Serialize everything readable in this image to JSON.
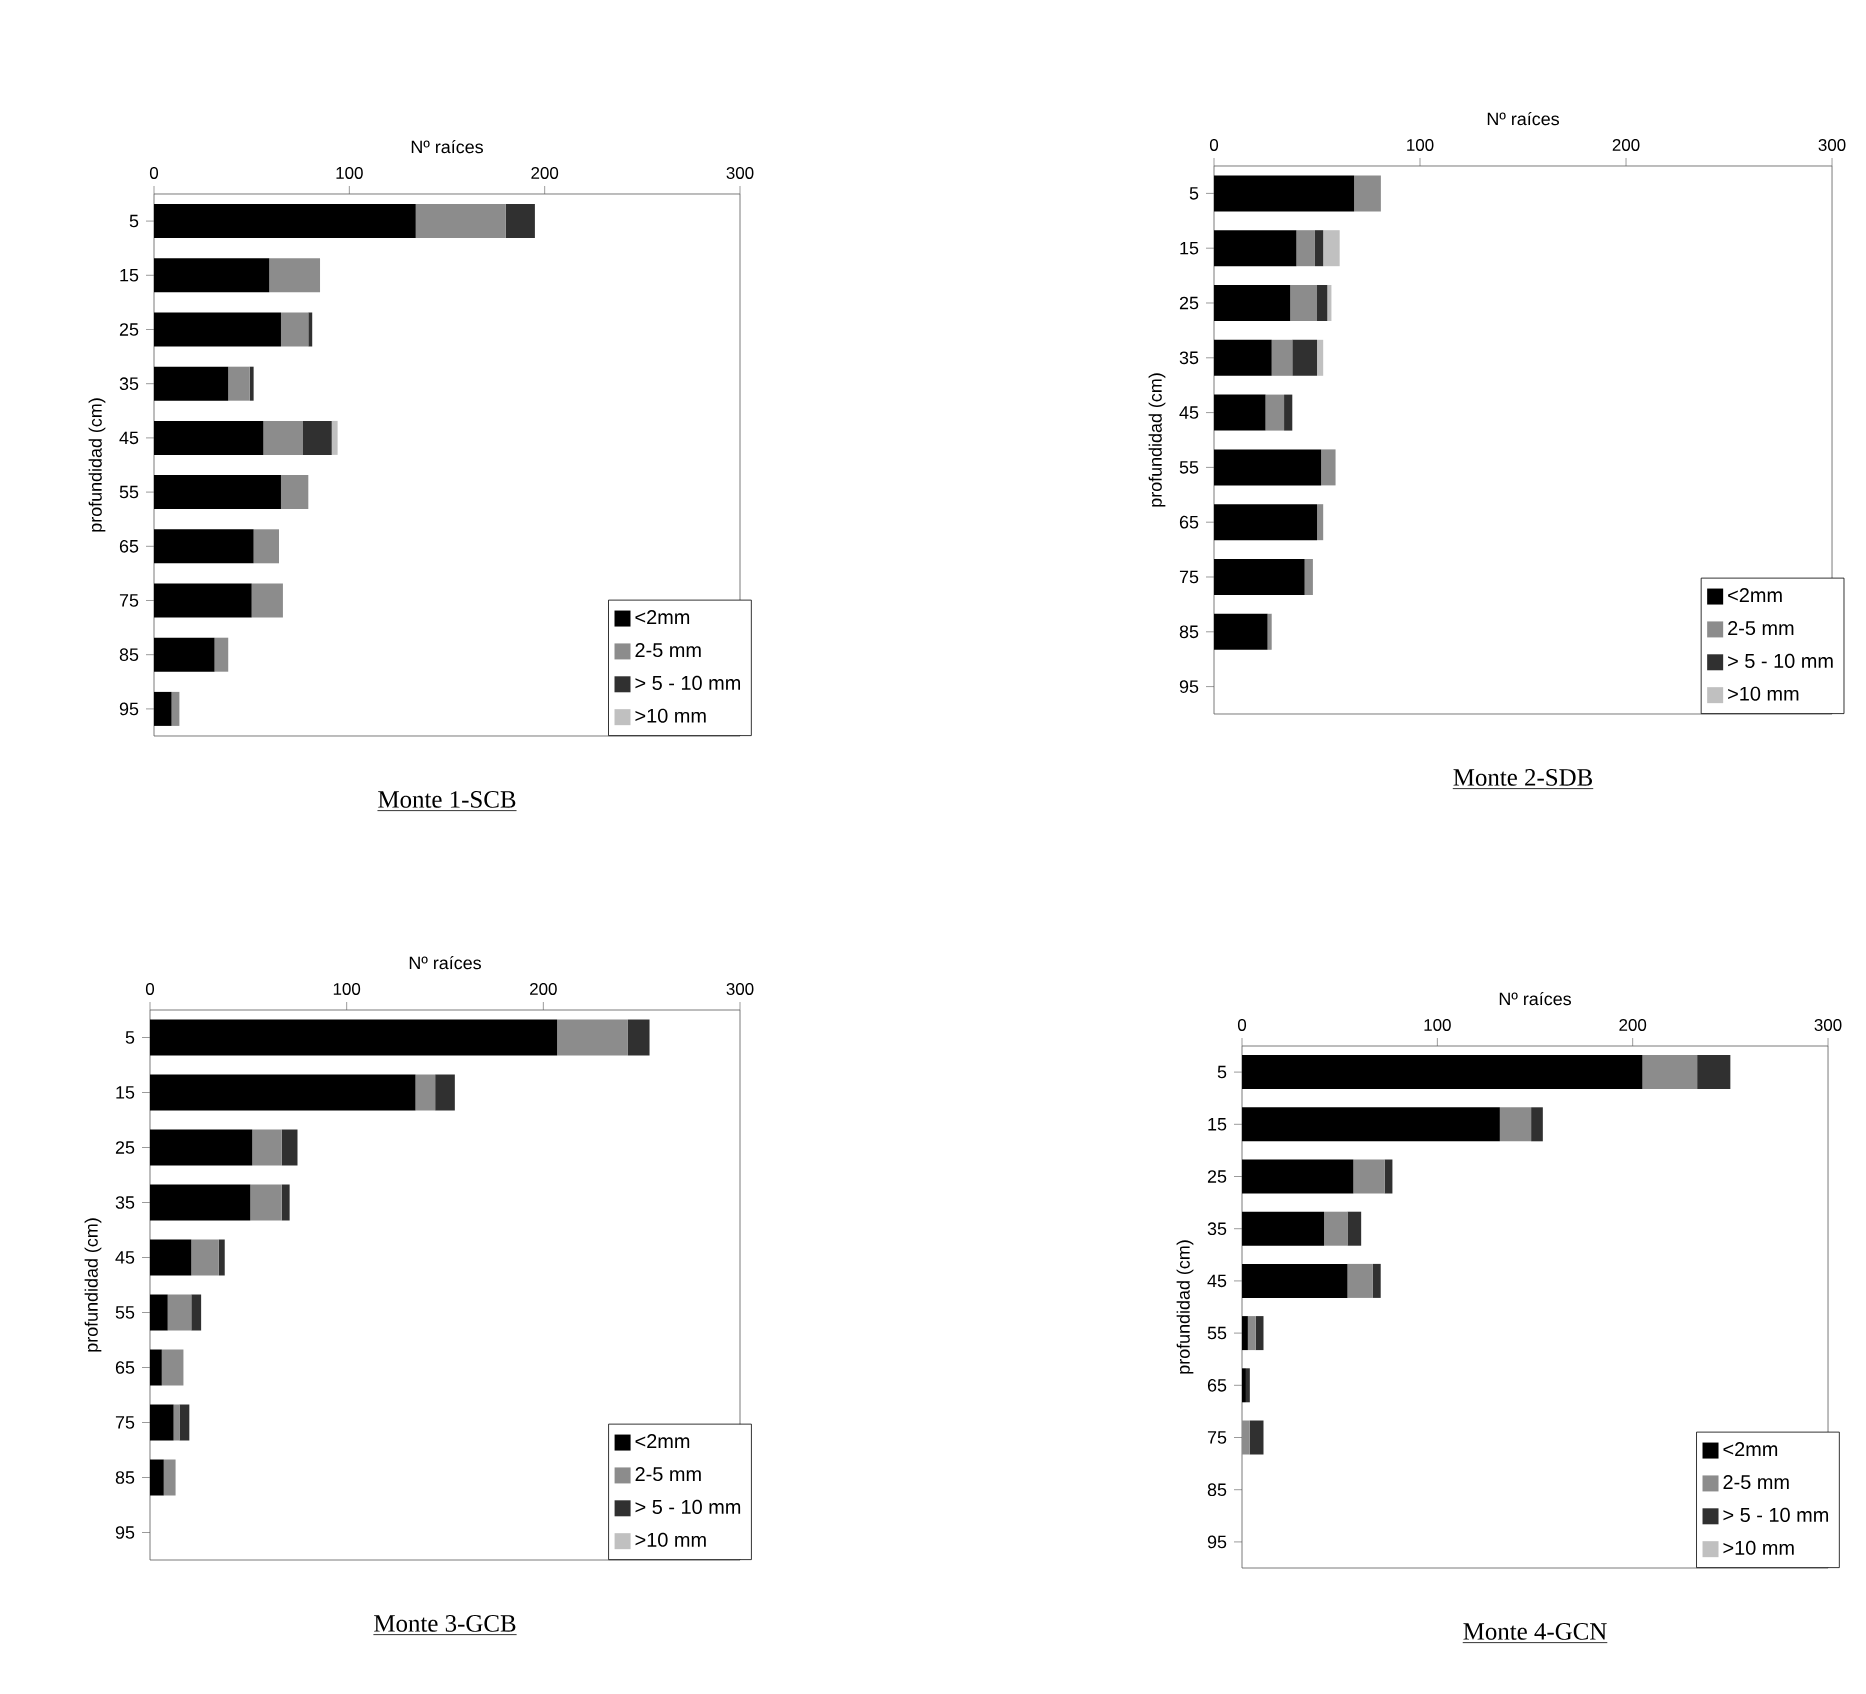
{
  "chart_data": [
    {
      "type": "bar",
      "orientation": "horizontal",
      "stacked": true,
      "title": "Monte 1-SCB",
      "xlabel": "Nº raíces",
      "ylabel": "profundidad (cm)",
      "categories": [
        "5",
        "15",
        "25",
        "35",
        "45",
        "55",
        "65",
        "75",
        "85",
        "95"
      ],
      "xlim": [
        0,
        300
      ],
      "xticks": [
        0,
        100,
        200,
        300
      ],
      "legend": "bottom right",
      "series": [
        {
          "name": "<2mm",
          "color": "#000000",
          "values": [
            134,
            59,
            65,
            38,
            56,
            65,
            51,
            50,
            31,
            9
          ]
        },
        {
          "name": "2-5 mm",
          "color": "#8c8c8c",
          "values": [
            46,
            26,
            14,
            11,
            20,
            14,
            13,
            16,
            7,
            4
          ]
        },
        {
          "name": "> 5 - 10 mm",
          "color": "#303030",
          "values": [
            15,
            0,
            2,
            2,
            15,
            0,
            0,
            0,
            0,
            0
          ]
        },
        {
          "name": ">10 mm",
          "color": "#c0c0c0",
          "values": [
            0,
            0,
            0,
            0,
            3,
            0,
            0,
            0,
            0,
            0
          ]
        }
      ]
    },
    {
      "type": "bar",
      "orientation": "horizontal",
      "stacked": true,
      "title": "Monte 2-SDB",
      "xlabel": "Nº raíces",
      "ylabel": "profundidad (cm)",
      "categories": [
        "5",
        "15",
        "25",
        "35",
        "45",
        "55",
        "65",
        "75",
        "85",
        "95"
      ],
      "xlim": [
        0,
        300
      ],
      "xticks": [
        0,
        100,
        200,
        300
      ],
      "legend": "bottom right",
      "series": [
        {
          "name": "<2mm",
          "color": "#000000",
          "values": [
            68,
            40,
            37,
            28,
            25,
            52,
            50,
            44,
            26,
            0
          ]
        },
        {
          "name": "2-5 mm",
          "color": "#8c8c8c",
          "values": [
            13,
            9,
            13,
            10,
            9,
            7,
            3,
            4,
            2,
            0
          ]
        },
        {
          "name": "> 5 - 10 mm",
          "color": "#303030",
          "values": [
            0,
            4,
            5,
            12,
            4,
            0,
            0,
            0,
            0,
            0
          ]
        },
        {
          "name": ">10 mm",
          "color": "#c0c0c0",
          "values": [
            0,
            8,
            2,
            3,
            0,
            0,
            0,
            0,
            0,
            0
          ]
        }
      ]
    },
    {
      "type": "bar",
      "orientation": "horizontal",
      "stacked": true,
      "title": "Monte 3-GCB",
      "xlabel": "Nº raíces",
      "ylabel": "profundidad (cm)",
      "categories": [
        "5",
        "15",
        "25",
        "35",
        "45",
        "55",
        "65",
        "75",
        "85",
        "95"
      ],
      "xlim": [
        0,
        300
      ],
      "xticks": [
        0,
        100,
        200,
        300
      ],
      "legend": "bottom right",
      "series": [
        {
          "name": "<2mm",
          "color": "#000000",
          "values": [
            207,
            135,
            52,
            51,
            21,
            9,
            6,
            12,
            7,
            0
          ]
        },
        {
          "name": "2-5 mm",
          "color": "#8c8c8c",
          "values": [
            36,
            10,
            15,
            16,
            14,
            12,
            11,
            3,
            6,
            0
          ]
        },
        {
          "name": "> 5 - 10 mm",
          "color": "#303030",
          "values": [
            11,
            10,
            8,
            4,
            3,
            5,
            0,
            5,
            0,
            0
          ]
        },
        {
          "name": ">10 mm",
          "color": "#c0c0c0",
          "values": [
            0,
            0,
            0,
            0,
            0,
            0,
            0,
            0,
            0,
            0
          ]
        }
      ]
    },
    {
      "type": "bar",
      "orientation": "horizontal",
      "stacked": true,
      "title": "Monte 4-GCN",
      "xlabel": "Nº raíces",
      "ylabel": "profundidad (cm)",
      "categories": [
        "5",
        "15",
        "25",
        "35",
        "45",
        "55",
        "65",
        "75",
        "85",
        "95"
      ],
      "xlim": [
        0,
        300
      ],
      "xticks": [
        0,
        100,
        200,
        300
      ],
      "legend": "bottom right",
      "series": [
        {
          "name": "<2mm",
          "color": "#000000",
          "values": [
            205,
            132,
            57,
            42,
            54,
            3,
            2,
            0,
            0,
            0
          ]
        },
        {
          "name": "2-5 mm",
          "color": "#8c8c8c",
          "values": [
            28,
            16,
            16,
            12,
            13,
            4,
            0,
            4,
            0,
            0
          ]
        },
        {
          "name": "> 5 - 10 mm",
          "color": "#303030",
          "values": [
            17,
            6,
            4,
            7,
            4,
            4,
            2,
            7,
            0,
            0
          ]
        },
        {
          "name": ">10 mm",
          "color": "#c0c0c0",
          "values": [
            0,
            0,
            0,
            0,
            0,
            0,
            0,
            0,
            0,
            0
          ]
        }
      ]
    }
  ]
}
